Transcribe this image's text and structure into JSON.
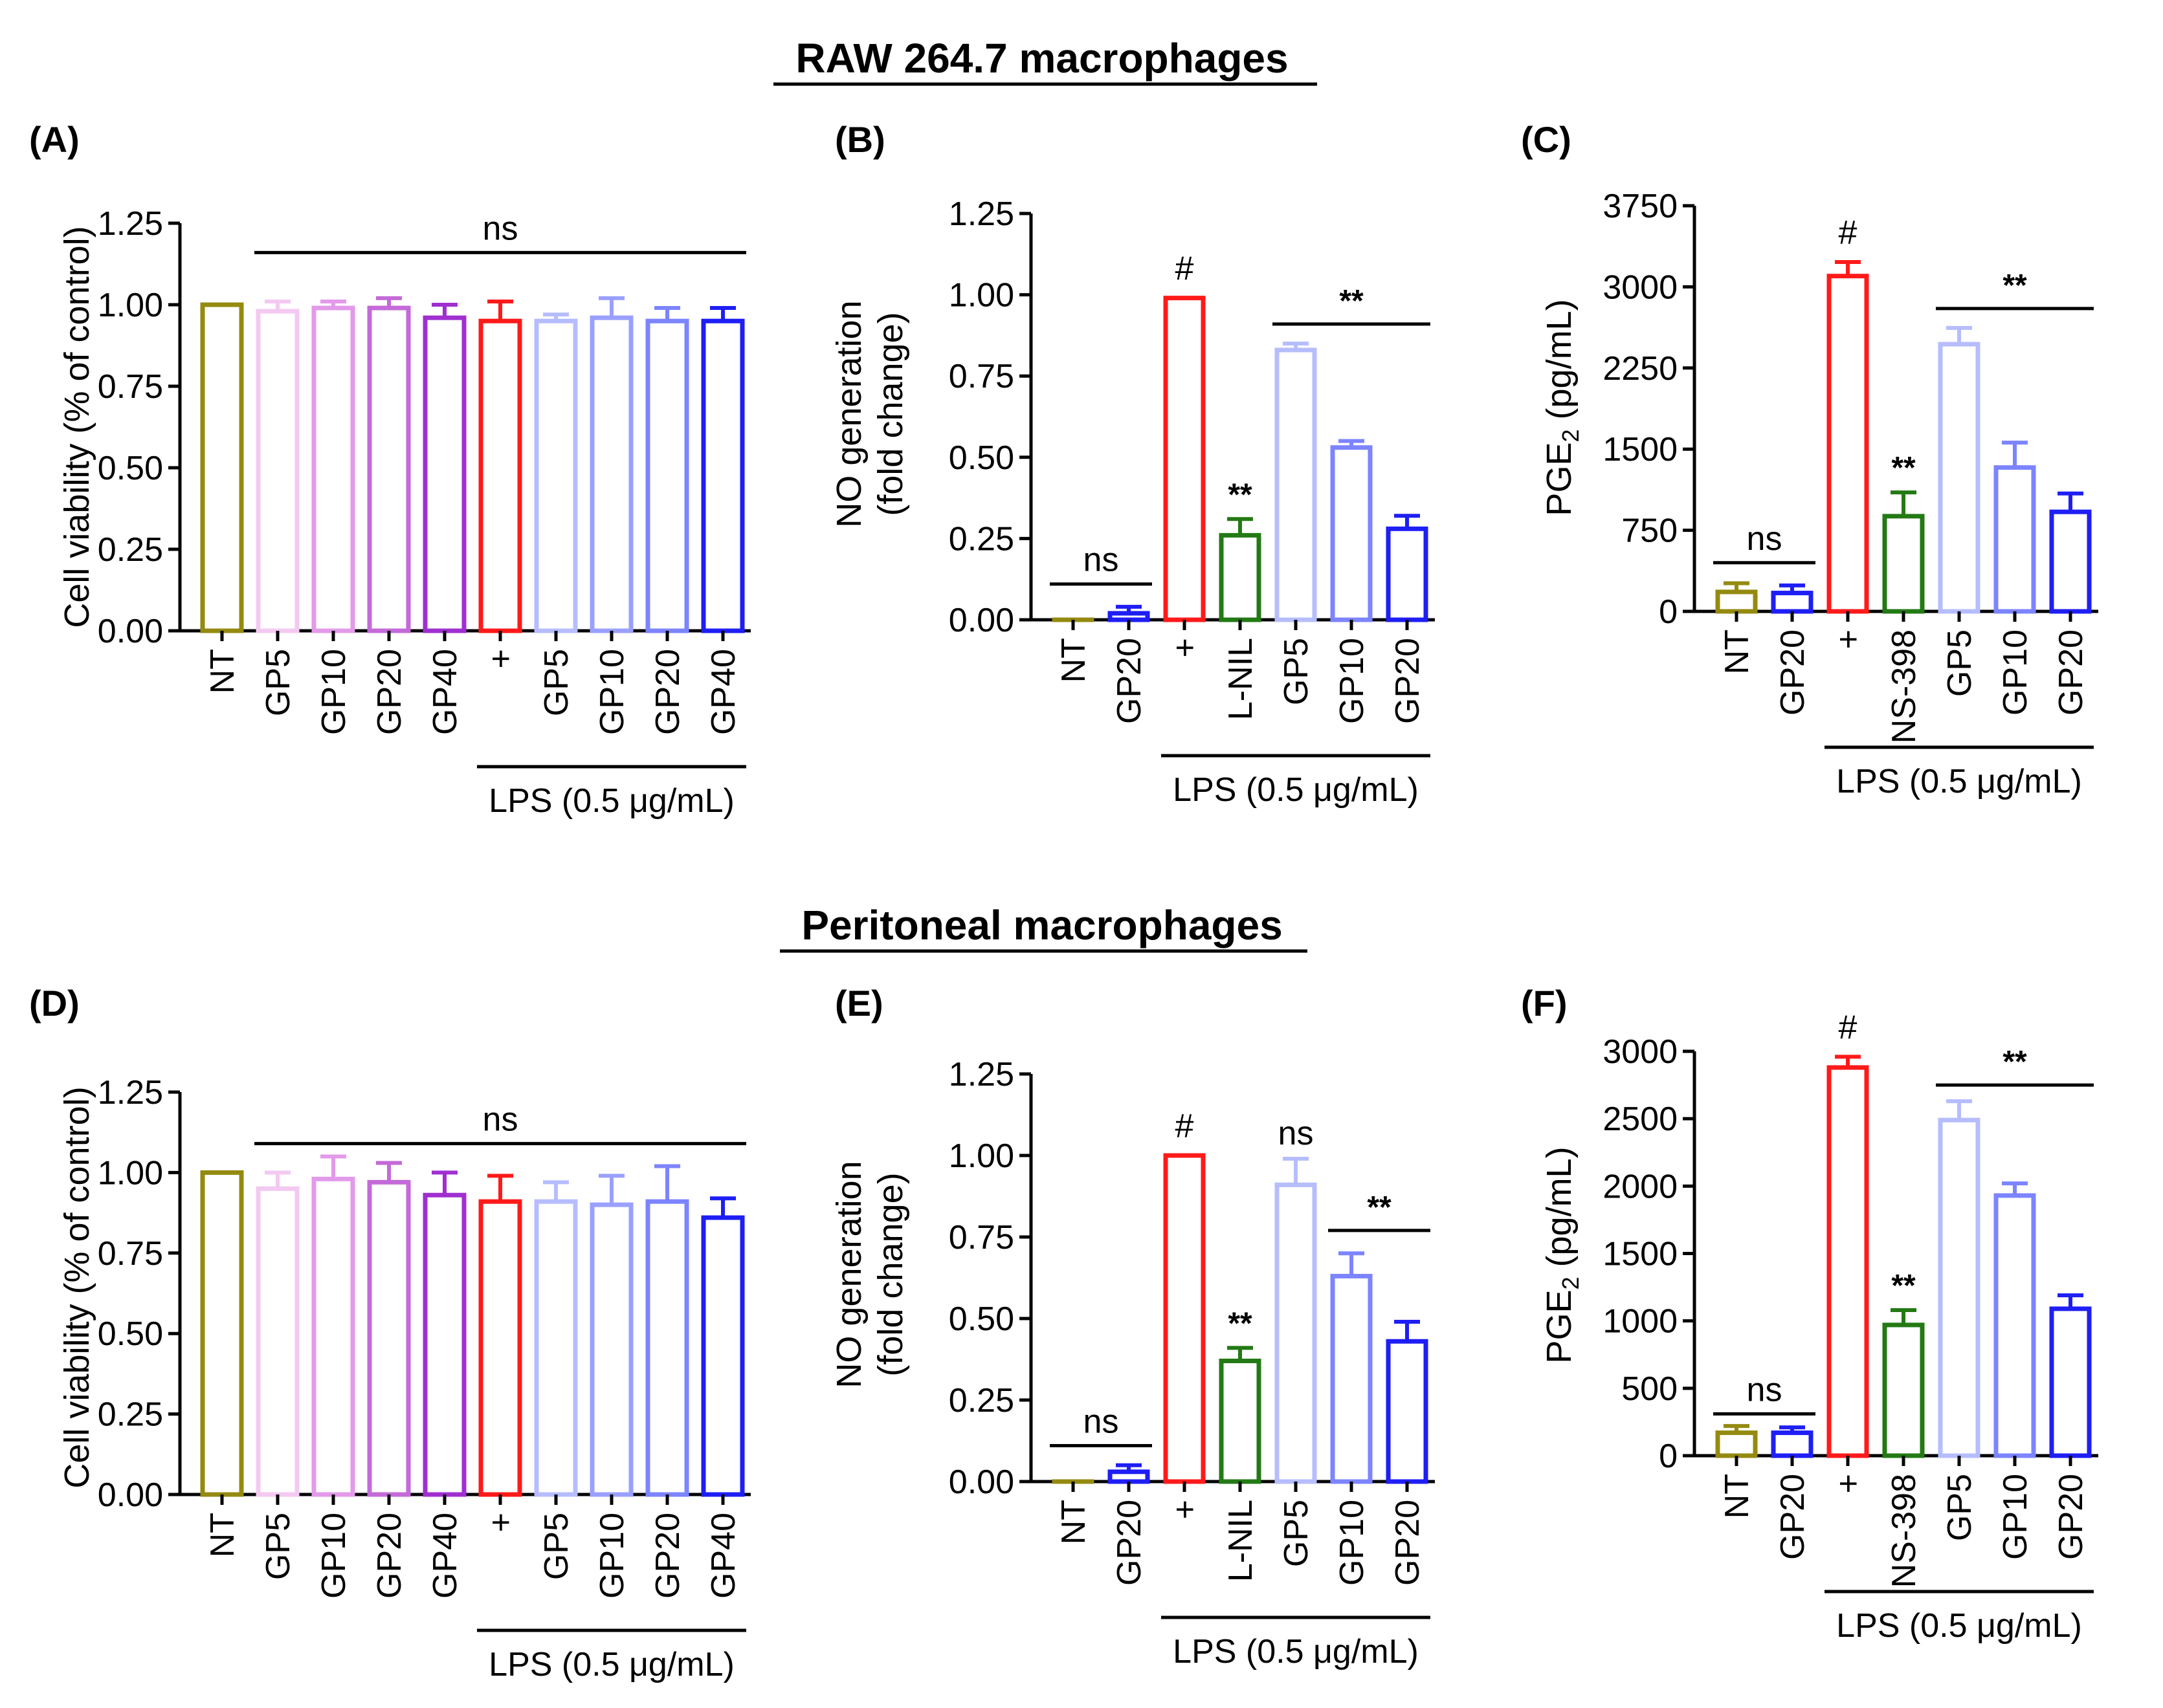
{
  "sections": {
    "top_title": "RAW 264.7 macrophages",
    "bottom_title": "Peritoneal macrophages"
  },
  "colors": {
    "olive": "#948a10",
    "pale_pink": "#f3c9f2",
    "light_violet": "#e39aea",
    "violet": "#c46ad8",
    "purple": "#a02fd0",
    "red": "#ff1a1a",
    "lavender": "#b6bdff",
    "periwinkle": "#9aa0ff",
    "light_blue": "#7c84ff",
    "medium_blue": "#6a6cff",
    "blue": "#1e1ef5",
    "green": "#237a14"
  },
  "chart_data": [
    {
      "id": "A",
      "panel_label": "(A)",
      "type": "bar",
      "ylabel": "Cell viability (% of control)",
      "ylim": [
        0,
        1.25
      ],
      "yticks": [
        "0.00",
        "0.25",
        "0.50",
        "0.75",
        "1.00",
        "1.25"
      ],
      "categories": [
        "NT",
        "GP5",
        "GP10",
        "GP20",
        "GP40",
        "+",
        "GP5",
        "GP10",
        "GP20",
        "GP40"
      ],
      "values": [
        1.0,
        0.98,
        0.99,
        0.99,
        0.96,
        0.95,
        0.95,
        0.96,
        0.95,
        0.95
      ],
      "errors": [
        0.0,
        0.03,
        0.02,
        0.03,
        0.04,
        0.06,
        0.02,
        0.06,
        0.04,
        0.04
      ],
      "colors": [
        "olive",
        "pale_pink",
        "light_violet",
        "violet",
        "purple",
        "red",
        "lavender",
        "periwinkle",
        "light_blue",
        "blue"
      ],
      "group_label": "LPS (0.5 μg/mL)",
      "group_range": [
        5,
        9
      ],
      "annotations": [
        {
          "text": "ns",
          "line": [
            1,
            9
          ],
          "y": 1.16
        }
      ],
      "bar_marks": [],
      "hash_marks": []
    },
    {
      "id": "B",
      "panel_label": "(B)",
      "type": "bar",
      "ylabel": [
        "NO generation",
        "(fold change)"
      ],
      "ylim": [
        0,
        1.25
      ],
      "yticks": [
        "0.00",
        "0.25",
        "0.50",
        "0.75",
        "1.00",
        "1.25"
      ],
      "categories": [
        "NT",
        "GP20",
        "+",
        "L-NIL",
        "GP5",
        "GP10",
        "GP20"
      ],
      "values": [
        0.0,
        0.02,
        0.99,
        0.26,
        0.83,
        0.53,
        0.28
      ],
      "errors": [
        0.0,
        0.02,
        0.0,
        0.05,
        0.02,
        0.02,
        0.04
      ],
      "colors": [
        "olive",
        "blue",
        "red",
        "green",
        "lavender",
        "light_blue",
        "blue"
      ],
      "group_label": "LPS (0.5 μg/mL)",
      "group_range": [
        2,
        6
      ],
      "annotations": [
        {
          "text": "ns",
          "line": [
            0,
            1
          ],
          "y": 0.11
        },
        {
          "text": "**",
          "line": [
            4,
            6
          ],
          "y": 0.91
        }
      ],
      "bar_marks": [
        {
          "index": 3,
          "text": "**"
        }
      ],
      "hash_marks": [
        {
          "index": 2,
          "text": "#"
        }
      ]
    },
    {
      "id": "C",
      "panel_label": "(C)",
      "type": "bar",
      "ylabel": "PGE2 (pg/mL)",
      "ylabel_main": "PGE",
      "ylabel_sub": "2",
      "ylabel_tail": " (pg/mL)",
      "ylim": [
        0,
        3750
      ],
      "yticks": [
        "0",
        "750",
        "1500",
        "2250",
        "3000",
        "3750"
      ],
      "categories": [
        "NT",
        "GP20",
        "+",
        "NS-398",
        "GP5",
        "GP10",
        "GP20"
      ],
      "values": [
        180,
        170,
        3100,
        880,
        2470,
        1330,
        920
      ],
      "errors": [
        80,
        70,
        130,
        220,
        150,
        230,
        170
      ],
      "colors": [
        "olive",
        "blue",
        "red",
        "green",
        "lavender",
        "light_blue",
        "blue"
      ],
      "group_label": "LPS (0.5 μg/mL)",
      "group_range": [
        2,
        6
      ],
      "annotations": [
        {
          "text": "ns",
          "line": [
            0,
            1
          ],
          "y": 450
        },
        {
          "text": "**",
          "line": [
            4,
            6
          ],
          "y": 2800
        }
      ],
      "bar_marks": [
        {
          "index": 3,
          "text": "**"
        }
      ],
      "hash_marks": [
        {
          "index": 2,
          "text": "#"
        }
      ]
    },
    {
      "id": "D",
      "panel_label": "(D)",
      "type": "bar",
      "ylabel": "Cell viability (% of control)",
      "ylim": [
        0,
        1.25
      ],
      "yticks": [
        "0.00",
        "0.25",
        "0.50",
        "0.75",
        "1.00",
        "1.25"
      ],
      "categories": [
        "NT",
        "GP5",
        "GP10",
        "GP20",
        "GP40",
        "+",
        "GP5",
        "GP10",
        "GP20",
        "GP40"
      ],
      "values": [
        1.0,
        0.95,
        0.98,
        0.97,
        0.93,
        0.91,
        0.91,
        0.9,
        0.91,
        0.86
      ],
      "errors": [
        0.0,
        0.05,
        0.07,
        0.06,
        0.07,
        0.08,
        0.06,
        0.09,
        0.11,
        0.06
      ],
      "colors": [
        "olive",
        "pale_pink",
        "light_violet",
        "violet",
        "purple",
        "red",
        "lavender",
        "periwinkle",
        "light_blue",
        "blue"
      ],
      "group_label": "LPS (0.5 μg/mL)",
      "group_range": [
        5,
        9
      ],
      "annotations": [
        {
          "text": "ns",
          "line": [
            1,
            9
          ],
          "y": 1.09
        }
      ],
      "bar_marks": [],
      "hash_marks": []
    },
    {
      "id": "E",
      "panel_label": "(E)",
      "type": "bar",
      "ylabel": [
        "NO generation",
        "(fold change)"
      ],
      "ylim": [
        0,
        1.25
      ],
      "yticks": [
        "0.00",
        "0.25",
        "0.50",
        "0.75",
        "1.00",
        "1.25"
      ],
      "categories": [
        "NT",
        "GP20",
        "+",
        "L-NIL",
        "GP5",
        "GP10",
        "GP20"
      ],
      "values": [
        0.0,
        0.03,
        1.0,
        0.37,
        0.91,
        0.63,
        0.43
      ],
      "errors": [
        0.0,
        0.02,
        0.0,
        0.04,
        0.08,
        0.07,
        0.06
      ],
      "colors": [
        "olive",
        "blue",
        "red",
        "green",
        "lavender",
        "light_blue",
        "blue"
      ],
      "group_label": "LPS (0.5 μg/mL)",
      "group_range": [
        2,
        6
      ],
      "annotations": [
        {
          "text": "ns",
          "line": [
            0,
            1
          ],
          "y": 0.11
        },
        {
          "text": "**",
          "line": [
            5,
            6
          ],
          "y": 0.77
        }
      ],
      "bar_marks": [
        {
          "index": 3,
          "text": "**"
        },
        {
          "index": 4,
          "text": "ns"
        }
      ],
      "hash_marks": [
        {
          "index": 2,
          "text": "#"
        }
      ]
    },
    {
      "id": "F",
      "panel_label": "(F)",
      "type": "bar",
      "ylabel": "PGE2 (pg/mL)",
      "ylabel_main": "PGE",
      "ylabel_sub": "2",
      "ylabel_tail": " (pg/mL)",
      "ylim": [
        0,
        3000
      ],
      "yticks": [
        "0",
        "500",
        "1000",
        "1500",
        "2000",
        "2500",
        "3000"
      ],
      "categories": [
        "NT",
        "GP20",
        "+",
        "NS-398",
        "GP5",
        "GP10",
        "GP20"
      ],
      "values": [
        170,
        170,
        2880,
        970,
        2490,
        1930,
        1090
      ],
      "errors": [
        50,
        40,
        80,
        110,
        140,
        90,
        100
      ],
      "colors": [
        "olive",
        "blue",
        "red",
        "green",
        "lavender",
        "light_blue",
        "blue"
      ],
      "group_label": "LPS (0.5 μg/mL)",
      "group_range": [
        2,
        6
      ],
      "annotations": [
        {
          "text": "ns",
          "line": [
            0,
            1
          ],
          "y": 310
        },
        {
          "text": "**",
          "line": [
            4,
            6
          ],
          "y": 2750
        }
      ],
      "bar_marks": [
        {
          "index": 3,
          "text": "**"
        }
      ],
      "hash_marks": [
        {
          "index": 2,
          "text": "#"
        }
      ]
    }
  ]
}
